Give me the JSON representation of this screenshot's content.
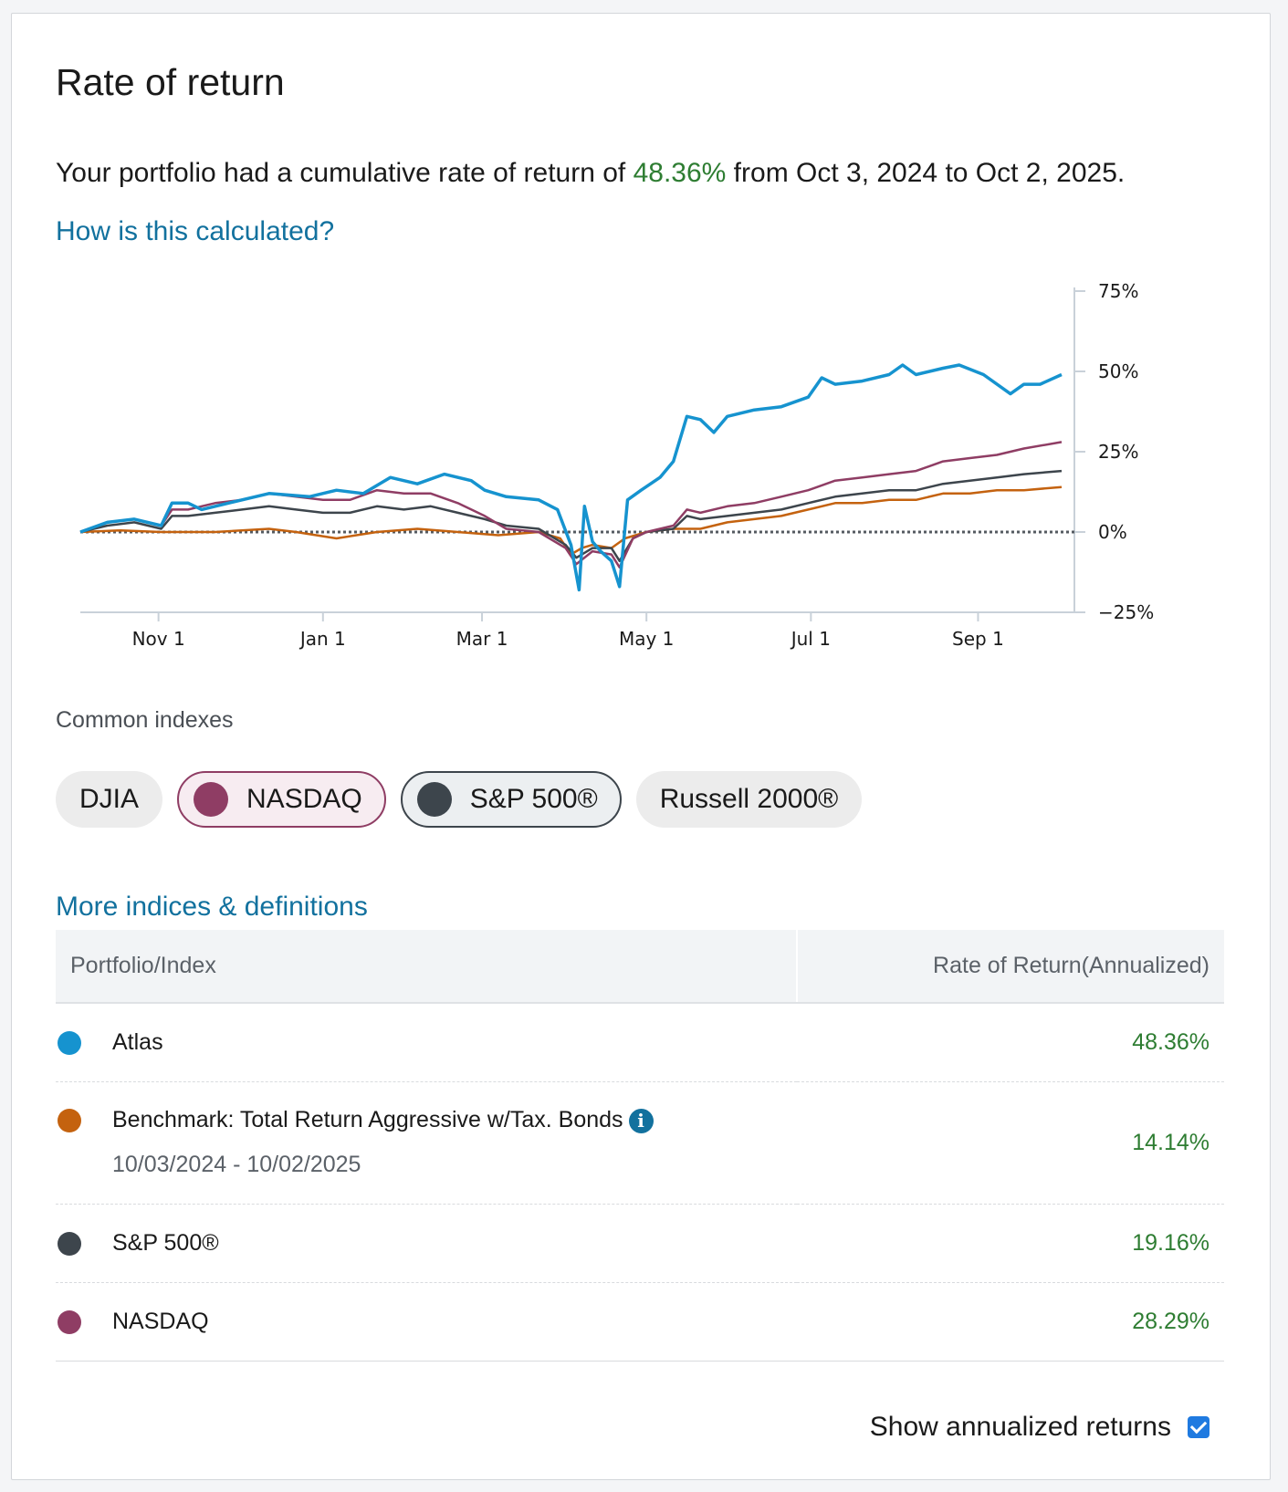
{
  "card": {
    "title": "Rate of return",
    "summary_prefix": "Your portfolio had a cumulative rate of return of ",
    "summary_pct": "48.36%",
    "summary_suffix": " from Oct 3, 2024 to Oct 2, 2025.",
    "how_link": "How is this calculated?"
  },
  "colors": {
    "atlas": "#1693cf",
    "benchmark": "#c4620f",
    "sp500": "#3d454c",
    "nasdaq": "#8f3d64",
    "positive": "#2e7d32",
    "link": "#12719e",
    "checkbox": "#1f7ae0"
  },
  "chart_data": {
    "type": "line",
    "x_ticks": [
      "Nov 1",
      "Jan 1",
      "Mar 1",
      "May 1",
      "Jul 1",
      "Sep 1"
    ],
    "x_tick_days": [
      29,
      90,
      149,
      210,
      271,
      333
    ],
    "x_range_days": [
      0,
      364
    ],
    "y_ticks": [
      "75%",
      "50%",
      "25%",
      "0%",
      "−25%"
    ],
    "y_tick_values": [
      75,
      50,
      25,
      0,
      -25
    ],
    "ylim": [
      -25,
      75
    ],
    "zero_line": "dotted",
    "series": [
      {
        "name": "Atlas",
        "color_key": "atlas",
        "points": [
          [
            0,
            0
          ],
          [
            10,
            3
          ],
          [
            20,
            4
          ],
          [
            30,
            2
          ],
          [
            34,
            9
          ],
          [
            40,
            9
          ],
          [
            45,
            7
          ],
          [
            55,
            9
          ],
          [
            70,
            12
          ],
          [
            85,
            11
          ],
          [
            95,
            13
          ],
          [
            105,
            12
          ],
          [
            115,
            17
          ],
          [
            125,
            15
          ],
          [
            135,
            18
          ],
          [
            145,
            16
          ],
          [
            150,
            13
          ],
          [
            158,
            11
          ],
          [
            170,
            10
          ],
          [
            177,
            7
          ],
          [
            182,
            -4
          ],
          [
            185,
            -18
          ],
          [
            187,
            8
          ],
          [
            190,
            -3
          ],
          [
            193,
            -6
          ],
          [
            197,
            -9
          ],
          [
            200,
            -17
          ],
          [
            203,
            10
          ],
          [
            208,
            13
          ],
          [
            215,
            17
          ],
          [
            220,
            22
          ],
          [
            225,
            36
          ],
          [
            230,
            35
          ],
          [
            235,
            31
          ],
          [
            240,
            36
          ],
          [
            250,
            38
          ],
          [
            260,
            39
          ],
          [
            270,
            42
          ],
          [
            275,
            48
          ],
          [
            280,
            46
          ],
          [
            290,
            47
          ],
          [
            300,
            49
          ],
          [
            305,
            52
          ],
          [
            310,
            49
          ],
          [
            320,
            51
          ],
          [
            326,
            52
          ],
          [
            335,
            49
          ],
          [
            345,
            43
          ],
          [
            350,
            46
          ],
          [
            356,
            46
          ],
          [
            364,
            49
          ]
        ]
      },
      {
        "name": "Benchmark: Total Return Aggressive w/Tax. Bonds",
        "color_key": "benchmark",
        "points": [
          [
            0,
            0
          ],
          [
            15,
            0.5
          ],
          [
            30,
            0
          ],
          [
            50,
            0
          ],
          [
            70,
            1
          ],
          [
            80,
            0
          ],
          [
            95,
            -2
          ],
          [
            110,
            0
          ],
          [
            125,
            1
          ],
          [
            140,
            0
          ],
          [
            155,
            -1
          ],
          [
            170,
            0
          ],
          [
            178,
            -2
          ],
          [
            182,
            -7
          ],
          [
            186,
            -5
          ],
          [
            190,
            -4
          ],
          [
            197,
            -5
          ],
          [
            202,
            -2
          ],
          [
            210,
            0
          ],
          [
            220,
            1
          ],
          [
            230,
            1
          ],
          [
            240,
            3
          ],
          [
            250,
            4
          ],
          [
            260,
            5
          ],
          [
            270,
            7
          ],
          [
            280,
            9
          ],
          [
            290,
            9
          ],
          [
            300,
            10
          ],
          [
            310,
            10
          ],
          [
            320,
            12
          ],
          [
            330,
            12
          ],
          [
            340,
            13
          ],
          [
            350,
            13
          ],
          [
            364,
            14
          ]
        ]
      },
      {
        "name": "S&P 500®",
        "color_key": "sp500",
        "points": [
          [
            0,
            0
          ],
          [
            10,
            2
          ],
          [
            20,
            3
          ],
          [
            30,
            1
          ],
          [
            34,
            5
          ],
          [
            40,
            5
          ],
          [
            50,
            6
          ],
          [
            60,
            7
          ],
          [
            70,
            8
          ],
          [
            80,
            7
          ],
          [
            90,
            6
          ],
          [
            100,
            6
          ],
          [
            110,
            8
          ],
          [
            120,
            7
          ],
          [
            130,
            8
          ],
          [
            140,
            6
          ],
          [
            150,
            4
          ],
          [
            158,
            2
          ],
          [
            170,
            1
          ],
          [
            180,
            -4
          ],
          [
            184,
            -8
          ],
          [
            190,
            -5
          ],
          [
            197,
            -5
          ],
          [
            200,
            -9
          ],
          [
            205,
            -2
          ],
          [
            210,
            0
          ],
          [
            220,
            1
          ],
          [
            225,
            5
          ],
          [
            230,
            4
          ],
          [
            240,
            5
          ],
          [
            250,
            6
          ],
          [
            260,
            7
          ],
          [
            270,
            9
          ],
          [
            280,
            11
          ],
          [
            290,
            12
          ],
          [
            300,
            13
          ],
          [
            310,
            13
          ],
          [
            320,
            15
          ],
          [
            330,
            16
          ],
          [
            340,
            17
          ],
          [
            350,
            18
          ],
          [
            364,
            19
          ]
        ]
      },
      {
        "name": "NASDAQ",
        "color_key": "nasdaq",
        "points": [
          [
            0,
            0
          ],
          [
            10,
            3
          ],
          [
            20,
            4
          ],
          [
            30,
            2
          ],
          [
            34,
            7
          ],
          [
            40,
            7
          ],
          [
            50,
            9
          ],
          [
            60,
            10
          ],
          [
            70,
            12
          ],
          [
            80,
            11
          ],
          [
            90,
            10
          ],
          [
            100,
            10
          ],
          [
            110,
            13
          ],
          [
            120,
            12
          ],
          [
            130,
            12
          ],
          [
            140,
            9
          ],
          [
            150,
            5
          ],
          [
            158,
            1
          ],
          [
            170,
            0
          ],
          [
            180,
            -5
          ],
          [
            184,
            -10
          ],
          [
            190,
            -6
          ],
          [
            197,
            -7
          ],
          [
            200,
            -11
          ],
          [
            205,
            -2
          ],
          [
            210,
            0
          ],
          [
            220,
            2
          ],
          [
            225,
            7
          ],
          [
            230,
            6
          ],
          [
            240,
            8
          ],
          [
            250,
            9
          ],
          [
            260,
            11
          ],
          [
            270,
            13
          ],
          [
            280,
            16
          ],
          [
            290,
            17
          ],
          [
            300,
            18
          ],
          [
            310,
            19
          ],
          [
            320,
            22
          ],
          [
            330,
            23
          ],
          [
            340,
            24
          ],
          [
            350,
            26
          ],
          [
            364,
            28
          ]
        ]
      }
    ]
  },
  "indexes": {
    "label": "Common indexes",
    "pills": [
      {
        "label": "DJIA"
      },
      {
        "label": "NASDAQ"
      },
      {
        "label": "S&P 500®"
      },
      {
        "label": "Russell 2000®"
      }
    ],
    "more_link": "More indices & definitions"
  },
  "table": {
    "col1": "Portfolio/Index",
    "col2": "Rate of Return(Annualized)",
    "rows": [
      {
        "name": "Atlas",
        "value": "48.36%"
      },
      {
        "name": "Benchmark: Total Return Aggressive w/Tax. Bonds",
        "sub": "10/03/2024 - 10/02/2025",
        "value": "14.14%"
      },
      {
        "name": "S&P 500®",
        "value": "19.16%"
      },
      {
        "name": "NASDAQ",
        "value": "28.29%"
      }
    ]
  },
  "footer": {
    "annualized_label": "Show annualized returns",
    "annualized_checked": true
  }
}
